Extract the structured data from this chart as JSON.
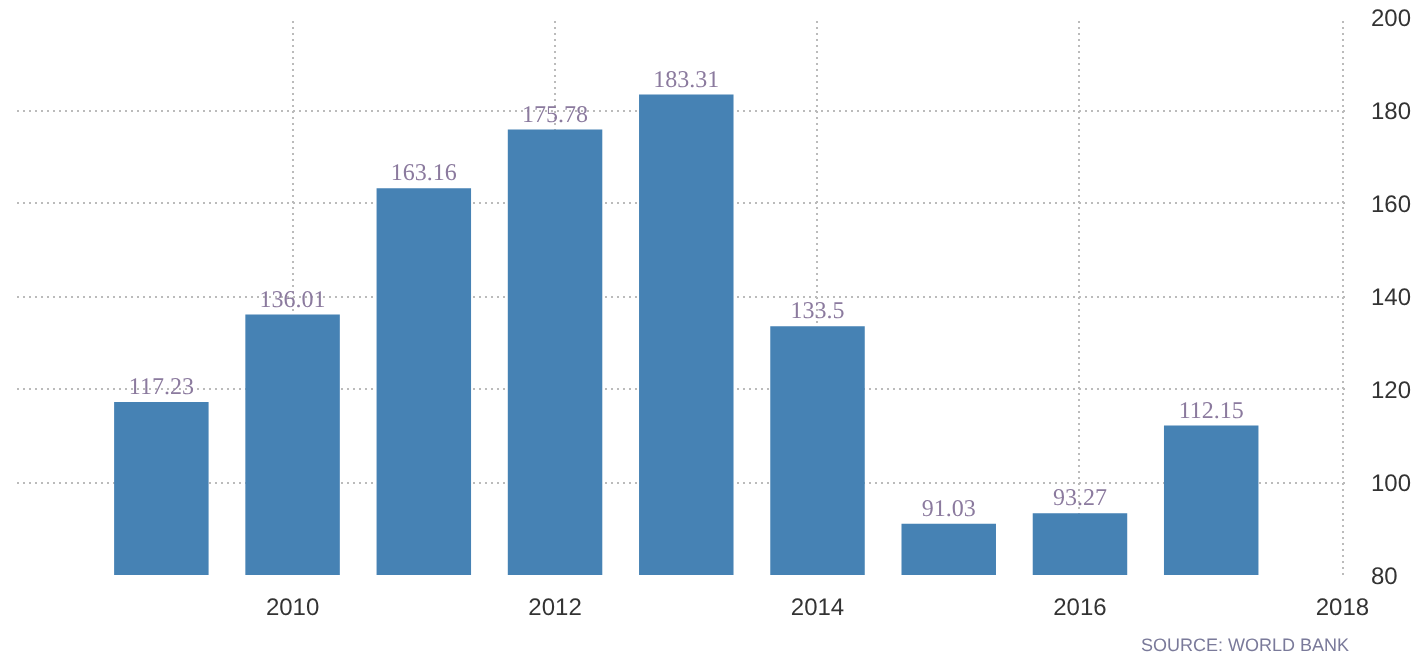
{
  "chart_data": {
    "type": "bar",
    "x": [
      2009,
      2010,
      2011,
      2012,
      2013,
      2014,
      2015,
      2016,
      2017
    ],
    "values": [
      117.23,
      136.01,
      163.16,
      175.78,
      183.31,
      133.5,
      91.03,
      93.27,
      112.15
    ],
    "color": "#4682b4",
    "xlim": [
      2007.9,
      2018.05
    ],
    "xticks": [
      2010,
      2012,
      2014,
      2016,
      2018
    ],
    "ylim": [
      80,
      200
    ],
    "yticks": [
      80,
      100,
      120,
      140,
      160,
      180,
      200
    ],
    "grid": true,
    "data_labels": true,
    "annotations": [
      "SOURCE: WORLD BANK"
    ]
  }
}
